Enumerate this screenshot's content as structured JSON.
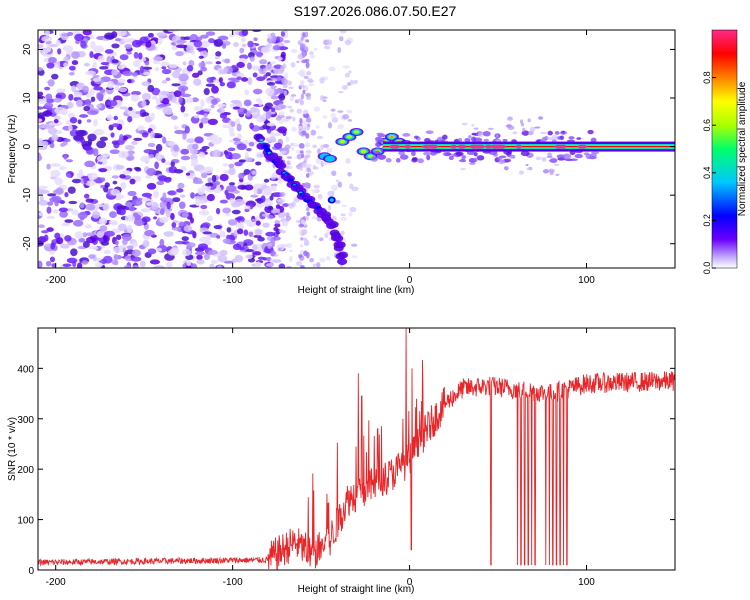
{
  "title": "S197.2026.086.07.50.E27",
  "chart_data": [
    {
      "type": "heatmap",
      "name": "spectrogram",
      "xlabel": "Height of straight line (km)",
      "ylabel": "Frequency (Hz)",
      "xlim": [
        -210,
        150
      ],
      "ylim": [
        -25,
        24
      ],
      "xticks": [
        -200,
        -100,
        0,
        100
      ],
      "yticks": [
        -20,
        -10,
        0,
        10,
        20
      ],
      "colorbar": {
        "label": "Normalized spectral amplitude",
        "range": [
          0,
          1
        ],
        "ticks": [
          "0.0",
          "0.2",
          "0.4",
          "0.6",
          "0.8"
        ],
        "tick_values": [
          0,
          0.2,
          0.4,
          0.6,
          0.8
        ],
        "colors": [
          "#ffffff",
          "#6a00ff",
          "#0000ff",
          "#00c8ff",
          "#00ff6a",
          "#aaff00",
          "#ffff00",
          "#ff8000",
          "#ff0000",
          "#ff2a8a"
        ]
      },
      "features": {
        "noise_region_x": [
          -210,
          -80
        ],
        "noise_density": "high",
        "descending_track": [
          [
            -85,
            2
          ],
          [
            -78,
            -2
          ],
          [
            -72,
            -5
          ],
          [
            -65,
            -8
          ],
          [
            -58,
            -11
          ],
          [
            -50,
            -13
          ],
          [
            -44,
            -16
          ],
          [
            -40,
            -20
          ],
          [
            -37,
            -24
          ]
        ],
        "signal_line": {
          "x_start": -15,
          "x_end": 150,
          "frequency": 0,
          "amplitude": 0.9
        },
        "noisy_cluster_x": [
          30,
          85
        ]
      }
    },
    {
      "type": "line",
      "name": "snr",
      "xlabel": "Height of straight line (km)",
      "ylabel": "SNR (10 * v/v)",
      "xlim": [
        -210,
        150
      ],
      "ylim": [
        0,
        480
      ],
      "xticks": [
        -200,
        -100,
        0,
        100
      ],
      "yticks": [
        0,
        100,
        200,
        300,
        400
      ],
      "color": "#e8262a",
      "series_profile": [
        {
          "x": -210,
          "y": 15
        },
        {
          "x": -80,
          "y": 20
        },
        {
          "x": -65,
          "y": 55
        },
        {
          "x": -55,
          "y": 30
        },
        {
          "x": -45,
          "y": 60
        },
        {
          "x": -35,
          "y": 140
        },
        {
          "x": -20,
          "y": 170
        },
        {
          "x": -10,
          "y": 190
        },
        {
          "x": 0,
          "y": 220
        },
        {
          "x": 10,
          "y": 280
        },
        {
          "x": 20,
          "y": 330
        },
        {
          "x": 30,
          "y": 360
        },
        {
          "x": 45,
          "y": 365
        },
        {
          "x": 80,
          "y": 350
        },
        {
          "x": 100,
          "y": 370
        },
        {
          "x": 150,
          "y": 375
        }
      ],
      "spikes": [
        {
          "x": -29,
          "y": 390
        },
        {
          "x": -27,
          "y": 345
        },
        {
          "x": -18,
          "y": 280
        },
        {
          "x": -2,
          "y": 480
        },
        {
          "x": 1,
          "y": 40
        }
      ],
      "dropouts": [
        46,
        61,
        63,
        65,
        67,
        69,
        71,
        77,
        79,
        81,
        83,
        85,
        87,
        89
      ]
    }
  ]
}
